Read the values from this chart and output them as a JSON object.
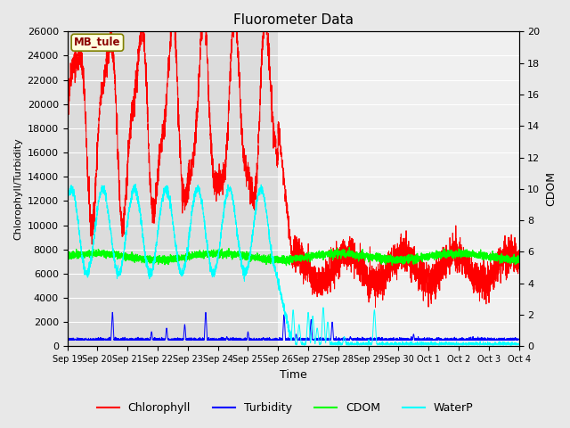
{
  "title": "Fluorometer Data",
  "xlabel": "Time",
  "ylabel_left": "Chlorophyll/Turbidity",
  "ylabel_right": "CDOM",
  "ylim_left": [
    0,
    26000
  ],
  "ylim_right": [
    0,
    20
  ],
  "annotation_text": "MB_tule",
  "legend_entries": [
    "Chlorophyll",
    "Turbidity",
    "CDOM",
    "WaterP"
  ],
  "legend_colors": [
    "red",
    "blue",
    "lime",
    "cyan"
  ],
  "fig_bg": "#e8e8e8",
  "plot_bg": "#f0f0f0",
  "shaded_bg": "#dcdcdc",
  "x_tick_labels": [
    "Sep 19",
    "Sep 20",
    "Sep 21",
    "Sep 22",
    "Sep 23",
    "Sep 24",
    "Sep 25",
    "Sep 26",
    "Sep 27",
    "Sep 28",
    "Sep 29",
    "Sep 30",
    "Oct 1",
    "Oct 2",
    "Oct 3",
    "Oct 4"
  ],
  "n_days": 15,
  "seed": 42
}
